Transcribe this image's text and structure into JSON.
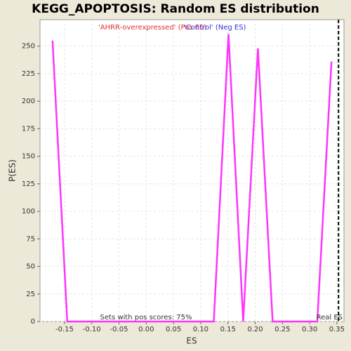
{
  "chart_data": {
    "type": "line",
    "title": "KEGG_APOPTOSIS: Random ES distribution",
    "xlabel": "ES",
    "ylabel": "P(ES)",
    "x": [
      -0.172,
      -0.145,
      0.124,
      0.151,
      0.178,
      0.205,
      0.232,
      0.314,
      0.34
    ],
    "values": [
      255,
      0,
      0,
      261,
      0,
      248,
      0,
      0,
      236
    ],
    "color": "#ff33ff",
    "xlim": [
      -0.195,
      0.363
    ],
    "ylim": [
      0,
      274
    ],
    "xticks": [
      {
        "value": -0.15,
        "label": "-0.15"
      },
      {
        "value": -0.1,
        "label": "-0.10"
      },
      {
        "value": -0.05,
        "label": "-0.05"
      },
      {
        "value": 0,
        "label": "0.00"
      },
      {
        "value": 0.05,
        "label": "0.05"
      },
      {
        "value": 0.1,
        "label": "0.10"
      },
      {
        "value": 0.15,
        "label": "0.15"
      },
      {
        "value": 0.2,
        "label": "0.20"
      },
      {
        "value": 0.25,
        "label": "0.25"
      },
      {
        "value": 0.3,
        "label": "0.30"
      },
      {
        "value": 0.35,
        "label": "0.35"
      }
    ],
    "yticks": [
      0,
      25,
      50,
      75,
      100,
      125,
      150,
      175,
      200,
      225,
      250
    ],
    "grid": true,
    "legend_labels": [
      {
        "text": "'AHRR-overexpressed' (Pos ES)",
        "color": "#e03030"
      },
      {
        "text": "'Control' (Neg ES)",
        "color": "#3030e0"
      }
    ],
    "real_es": 0.353,
    "real_es_label": "Real ES",
    "annotation": "Sets with pos scores: 75%"
  }
}
